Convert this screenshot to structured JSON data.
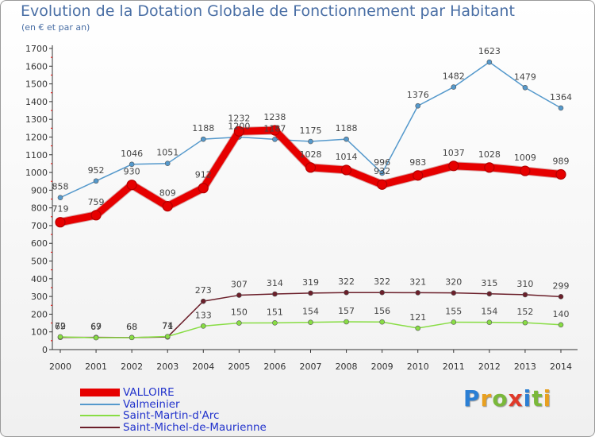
{
  "title": "Evolution de la Dotation Globale de Fonctionnement par Habitant",
  "subtitle": "(en € et par an)",
  "logo": {
    "text": "Proxiti",
    "letter_colors": [
      "#2b7fd4",
      "#e8a020",
      "#7ab83a",
      "#e03a2a",
      "#2b7fd4",
      "#7ab83a",
      "#e8a020"
    ]
  },
  "chart_data": {
    "type": "line",
    "x": [
      2000,
      2001,
      2002,
      2003,
      2004,
      2005,
      2006,
      2007,
      2008,
      2009,
      2010,
      2011,
      2012,
      2013,
      2014
    ],
    "ylim": [
      0,
      1700
    ],
    "yticks": [
      0,
      100,
      200,
      300,
      400,
      500,
      600,
      700,
      800,
      900,
      1000,
      1100,
      1200,
      1300,
      1400,
      1500,
      1600,
      1700
    ],
    "grid": false,
    "legend_position": "bottom-left",
    "series": [
      {
        "name": "VALLOIRE",
        "color": "#e60000",
        "values": [
          719,
          759,
          930,
          809,
          912,
          1232,
          1238,
          1028,
          1014,
          932,
          983,
          1037,
          1028,
          1009,
          989
        ]
      },
      {
        "name": "Valmeinier",
        "color": "#5599cc",
        "values": [
          858,
          952,
          1046,
          1051,
          1188,
          1200,
          1187,
          1175,
          1188,
          996,
          1376,
          1482,
          1623,
          1479,
          1364
        ]
      },
      {
        "name": "Saint-Martin-d'Arc",
        "color": "#88dd44",
        "values": [
          72,
          67,
          68,
          74,
          133,
          150,
          151,
          154,
          157,
          156,
          121,
          155,
          154,
          152,
          140
        ]
      },
      {
        "name": "Saint-Michel-de-Maurienne",
        "color": "#6b1f2a",
        "values": [
          69,
          69,
          68,
          71,
          273,
          307,
          314,
          319,
          322,
          322,
          321,
          320,
          315,
          310,
          299
        ]
      }
    ]
  }
}
